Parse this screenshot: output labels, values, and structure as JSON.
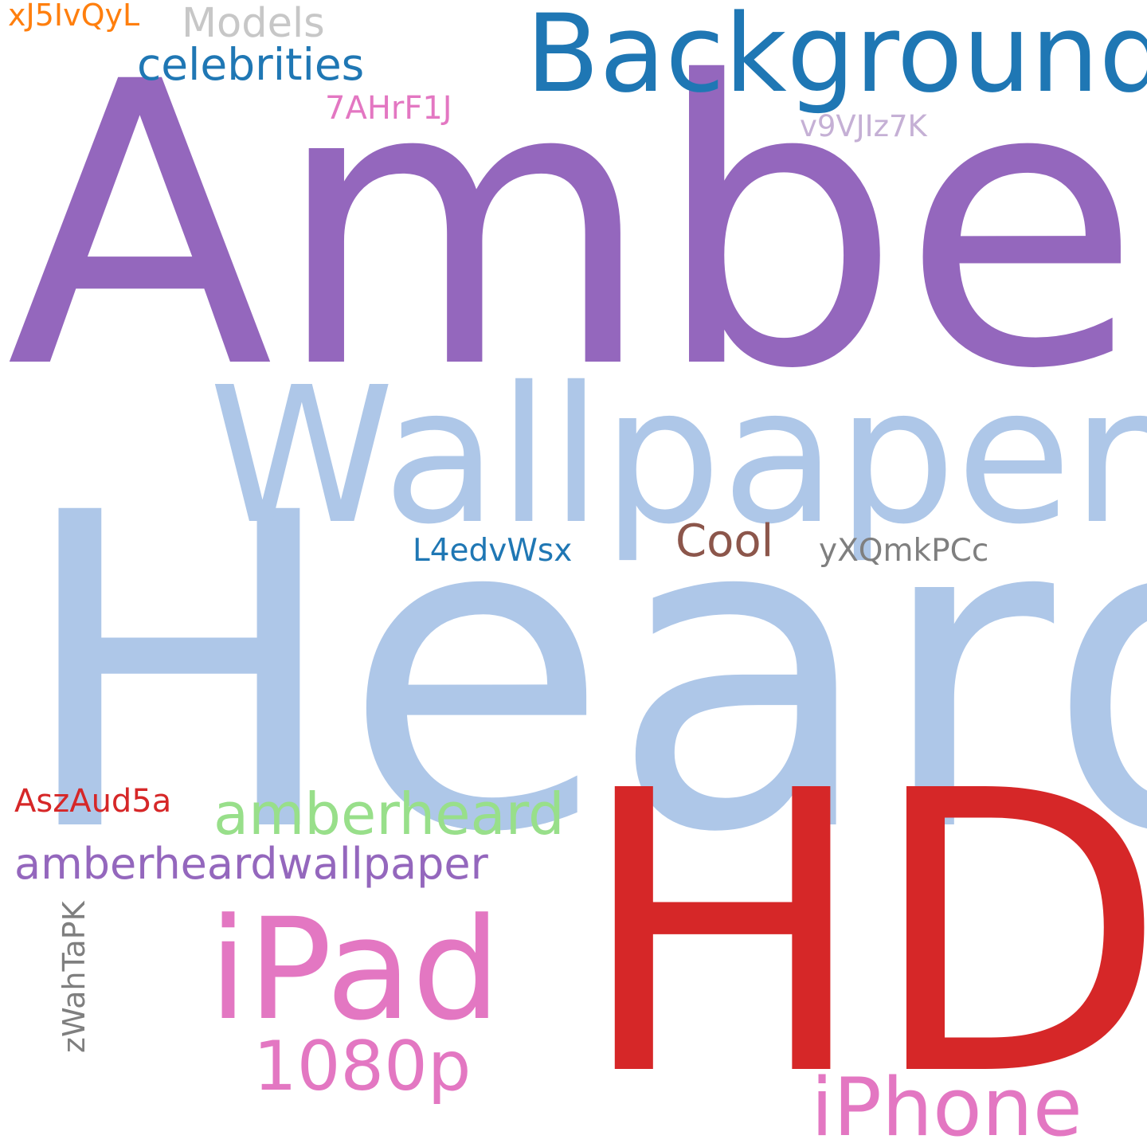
{
  "words": {
    "amber": {
      "text": "Amber",
      "color": "#9467bd"
    },
    "heard": {
      "text": "Heard",
      "color": "#aec7e8"
    },
    "wallpaper": {
      "text": "Wallpaper",
      "color": "#aec7e8"
    },
    "hd": {
      "text": "HD",
      "color": "#d62728"
    },
    "backgrounds": {
      "text": "Backgrounds",
      "color": "#1f77b4"
    },
    "ipad": {
      "text": "iPad",
      "color": "#e377c2"
    },
    "iphone": {
      "text": "iPhone",
      "color": "#e377c2"
    },
    "p1080": {
      "text": "1080p",
      "color": "#e377c2"
    },
    "amberheard": {
      "text": "amberheard",
      "color": "#98df8a"
    },
    "amberheardwallpaper": {
      "text": "amberheardwallpaper",
      "color": "#9467bd"
    },
    "celebrities": {
      "text": "celebrities",
      "color": "#1f77b4"
    },
    "models": {
      "text": "Models",
      "color": "#c7c7c7"
    },
    "xj5": {
      "text": "xJ5IvQyL",
      "color": "#ff7f0e"
    },
    "7ahr": {
      "text": "7AHrF1J",
      "color": "#e377c2"
    },
    "v9vj": {
      "text": "v9VJIz7K",
      "color": "#c5b0d5"
    },
    "cool": {
      "text": "Cool",
      "color": "#8c564b"
    },
    "l4ed": {
      "text": "L4edvWsx",
      "color": "#1f77b4"
    },
    "yxqm": {
      "text": "yXQmkPCc",
      "color": "#7f7f7f"
    },
    "asza": {
      "text": "AszAud5a",
      "color": "#d62728"
    },
    "zwah": {
      "text": "zWahTaPK",
      "color": "#7f7f7f"
    }
  }
}
